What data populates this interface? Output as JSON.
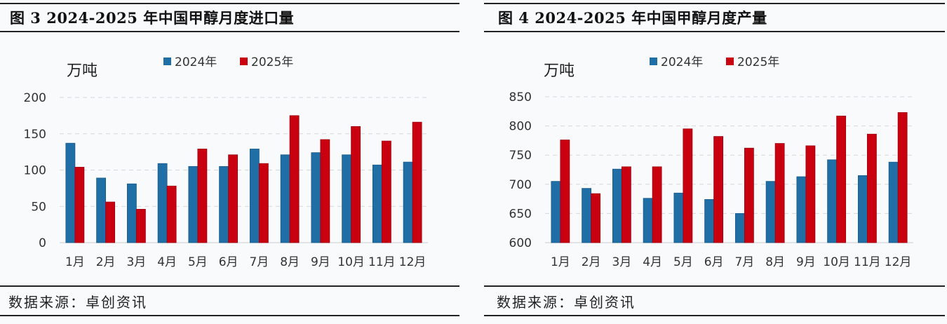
{
  "colors": {
    "series_2024": "#1f6ea6",
    "series_2025": "#c8000f",
    "grid": "#d5d8dc"
  },
  "source": "数据来源：卓创资讯",
  "chart_data": [
    {
      "type": "bar",
      "title": "图 3 2024-2025 年中国甲醇月度进口量",
      "ylabel": "万吨",
      "xlabel": "",
      "ylim": [
        0,
        200
      ],
      "yticks": [
        "0",
        "50",
        "100",
        "150",
        "200"
      ],
      "ytick_values": [
        0,
        50,
        100,
        150,
        200
      ],
      "grid": true,
      "legend_position": "top-center",
      "categories": [
        "1月",
        "2月",
        "3月",
        "4月",
        "5月",
        "6月",
        "7月",
        "8月",
        "9月",
        "10月",
        "11月",
        "12月"
      ],
      "series": [
        {
          "name": "2024年",
          "color": "#1f6ea6",
          "values": [
            137,
            89,
            81,
            109,
            105,
            105,
            129,
            121,
            124,
            121,
            107,
            111
          ]
        },
        {
          "name": "2025年",
          "color": "#c8000f",
          "values": [
            104,
            56,
            46,
            78,
            129,
            121,
            109,
            175,
            142,
            160,
            140,
            166
          ]
        }
      ]
    },
    {
      "type": "bar",
      "title": "图 4 2024-2025 年中国甲醇月度产量",
      "ylabel": "万吨",
      "xlabel": "",
      "ylim": [
        600,
        850
      ],
      "yticks": [
        "600",
        "650",
        "700",
        "750",
        "800",
        "850"
      ],
      "ytick_values": [
        600,
        650,
        700,
        750,
        800,
        850
      ],
      "grid": true,
      "legend_position": "top-center",
      "categories": [
        "1月",
        "2月",
        "3月",
        "4月",
        "5月",
        "6月",
        "7月",
        "8月",
        "9月",
        "10月",
        "11月",
        "12月"
      ],
      "series": [
        {
          "name": "2024年",
          "color": "#1f6ea6",
          "values": [
            705,
            693,
            726,
            676,
            685,
            674,
            650,
            705,
            713,
            742,
            715,
            738
          ]
        },
        {
          "name": "2025年",
          "color": "#c8000f",
          "values": [
            776,
            684,
            730,
            730,
            795,
            782,
            762,
            770,
            766,
            817,
            786,
            823
          ]
        }
      ]
    }
  ]
}
